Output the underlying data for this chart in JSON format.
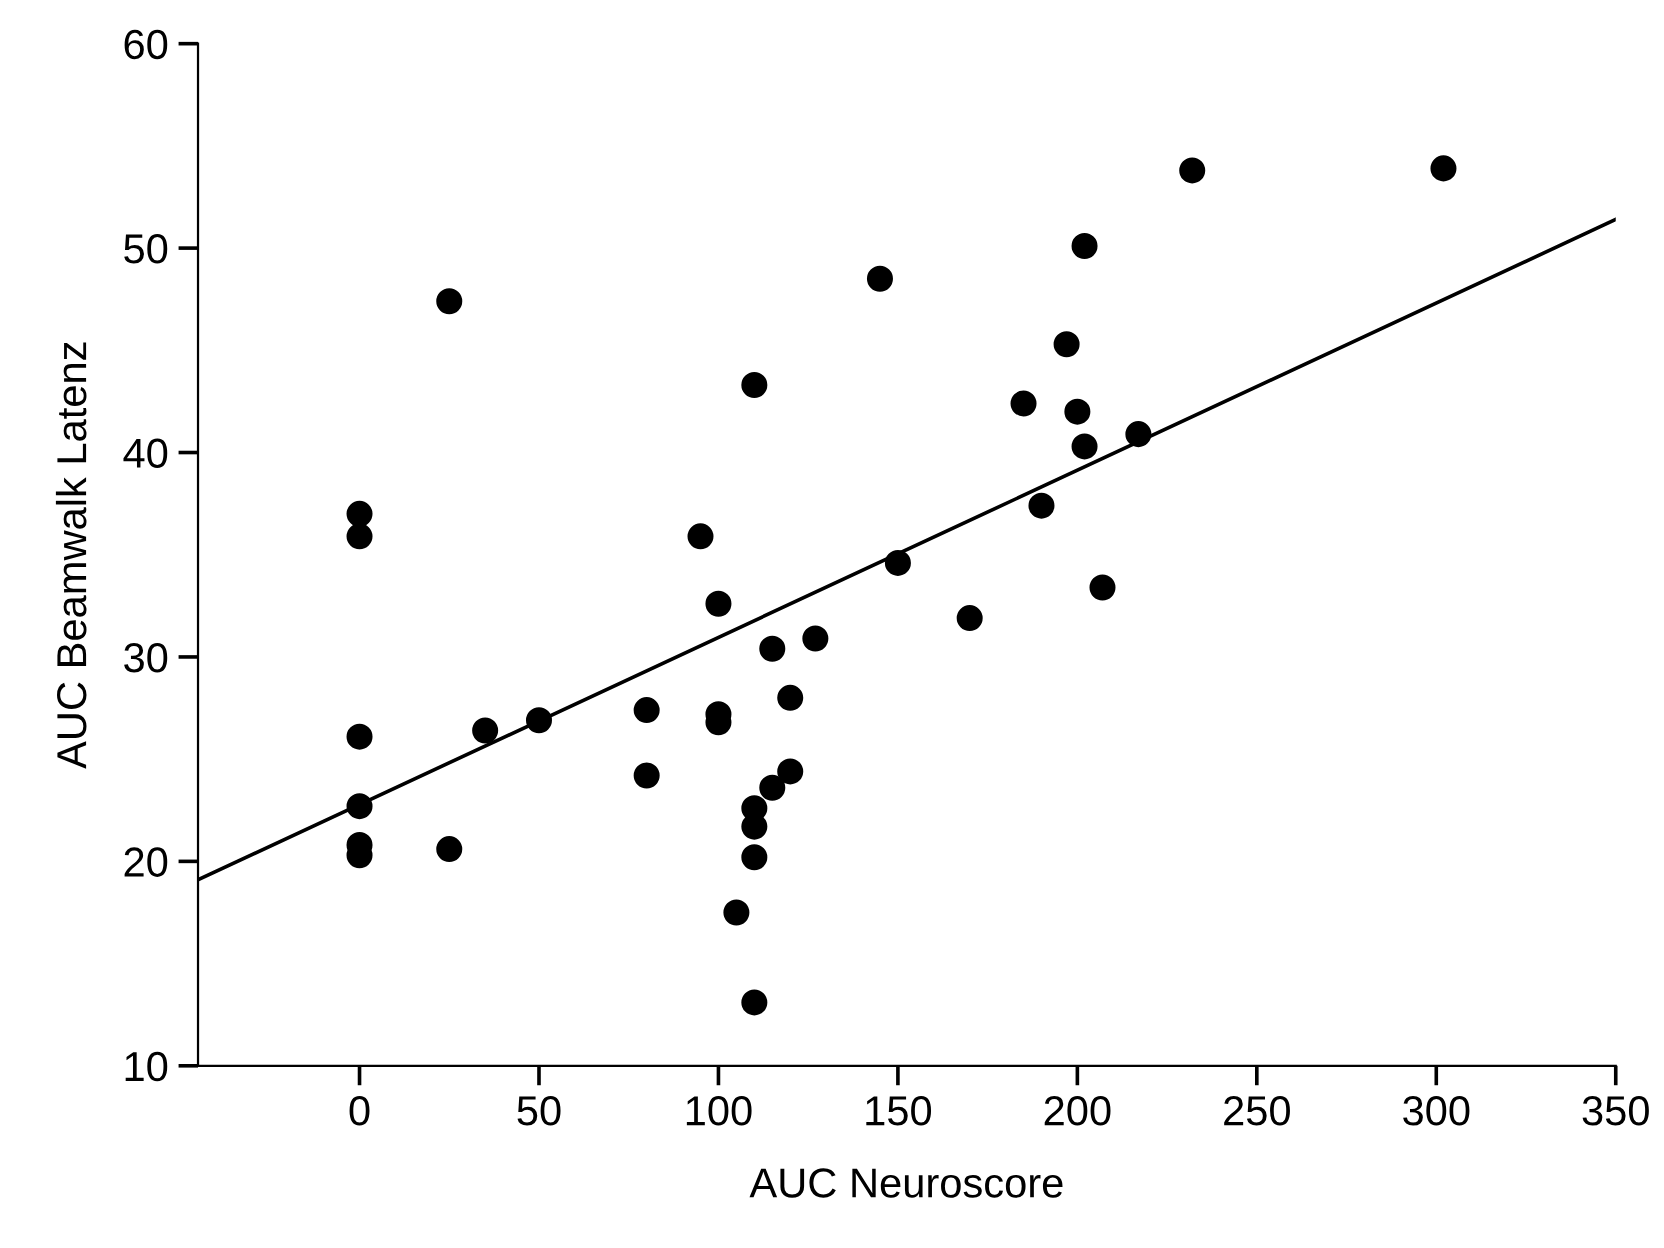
{
  "chart_data": {
    "type": "scatter",
    "xlabel": "AUC Neuroscore",
    "ylabel": "AUC Beamwalk Latenz",
    "xlim": [
      -45,
      350
    ],
    "ylim": [
      10,
      60
    ],
    "xticks": [
      0,
      50,
      100,
      150,
      200,
      250,
      300,
      350
    ],
    "yticks": [
      10,
      20,
      30,
      40,
      50,
      60
    ],
    "grid": false,
    "legend": false,
    "series": [
      {
        "marker": "circle",
        "color": "#000000",
        "x": [
          25,
          0,
          0,
          110,
          95,
          100,
          115,
          127,
          232,
          302,
          202,
          145,
          197,
          185,
          200,
          217,
          202,
          190,
          150,
          207,
          170,
          0,
          0,
          0,
          0,
          25,
          35,
          50,
          80,
          80,
          100,
          100,
          120,
          120,
          115,
          110,
          110,
          110,
          105,
          110
        ],
        "values": [
          47.4,
          37.0,
          35.9,
          43.3,
          35.9,
          32.6,
          30.4,
          30.9,
          53.8,
          53.9,
          50.1,
          48.5,
          45.3,
          42.4,
          42.0,
          40.9,
          40.3,
          37.4,
          34.6,
          33.4,
          31.9,
          26.1,
          22.7,
          20.8,
          20.3,
          20.6,
          26.4,
          26.9,
          27.4,
          24.2,
          27.2,
          26.8,
          28.0,
          24.4,
          23.6,
          22.6,
          21.7,
          20.2,
          17.5,
          13.1
        ]
      },
      {
        "type": "line",
        "marker": "none",
        "color": "#000000",
        "line_style": "solid",
        "x": [
          -45,
          350
        ],
        "values": [
          19.1,
          51.4
        ]
      }
    ]
  }
}
